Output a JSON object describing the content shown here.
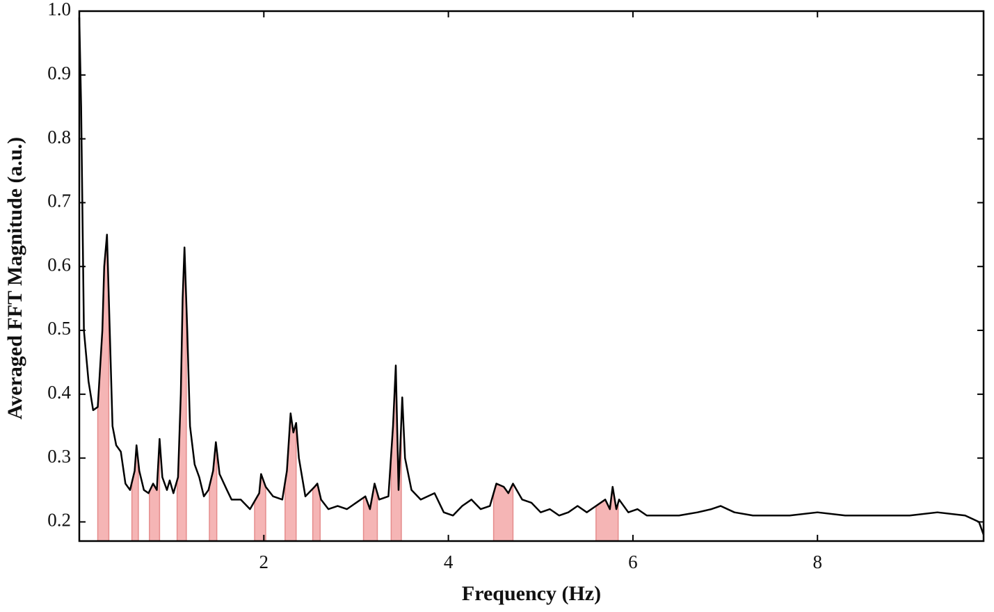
{
  "chart_data": {
    "type": "line",
    "x_label": "Frequency (Hz)",
    "y_label": "Averaged FFT Magnitude (a.u.)",
    "xlim": [
      0,
      9.8
    ],
    "ylim": [
      0.17,
      1.0
    ],
    "xticks": [
      2,
      4,
      6,
      8
    ],
    "yticks": [
      0.2,
      0.3,
      0.4,
      0.5,
      0.6,
      0.7,
      0.8,
      0.9,
      {
        "value": 1,
        "label": "1.0"
      }
    ],
    "grid": false,
    "band_color": "#f5b5b5",
    "bands": [
      [
        0.2,
        0.32
      ],
      [
        0.57,
        0.64
      ],
      [
        0.76,
        0.87
      ],
      [
        1.06,
        1.16
      ],
      [
        1.41,
        1.49
      ],
      [
        1.9,
        2.02
      ],
      [
        2.23,
        2.35
      ],
      [
        2.53,
        2.61
      ],
      [
        3.08,
        3.23
      ],
      [
        3.38,
        3.49
      ],
      [
        4.49,
        4.7
      ],
      [
        5.6,
        5.84
      ]
    ],
    "x": [
      0.0,
      0.02,
      0.05,
      0.1,
      0.15,
      0.2,
      0.25,
      0.27,
      0.3,
      0.33,
      0.36,
      0.4,
      0.45,
      0.5,
      0.55,
      0.6,
      0.62,
      0.65,
      0.7,
      0.75,
      0.8,
      0.84,
      0.87,
      0.9,
      0.95,
      0.98,
      1.02,
      1.07,
      1.1,
      1.12,
      1.14,
      1.17,
      1.2,
      1.25,
      1.3,
      1.35,
      1.4,
      1.45,
      1.48,
      1.52,
      1.6,
      1.65,
      1.75,
      1.85,
      1.95,
      1.97,
      2.02,
      2.1,
      2.2,
      2.25,
      2.29,
      2.32,
      2.35,
      2.38,
      2.45,
      2.55,
      2.58,
      2.62,
      2.7,
      2.8,
      2.9,
      3.0,
      3.1,
      3.15,
      3.2,
      3.25,
      3.35,
      3.4,
      3.43,
      3.46,
      3.5,
      3.53,
      3.6,
      3.7,
      3.85,
      3.9,
      3.95,
      4.05,
      4.15,
      4.25,
      4.35,
      4.45,
      4.52,
      4.6,
      4.65,
      4.7,
      4.8,
      4.9,
      5.0,
      5.1,
      5.2,
      5.3,
      5.4,
      5.5,
      5.6,
      5.7,
      5.75,
      5.78,
      5.82,
      5.85,
      5.95,
      6.05,
      6.15,
      6.3,
      6.5,
      6.7,
      6.85,
      6.95,
      7.1,
      7.3,
      7.5,
      7.7,
      8.0,
      8.3,
      8.6,
      9.0,
      9.3,
      9.6,
      9.75,
      9.8
    ],
    "series": [
      {
        "color": "#000000",
        "values": [
          0.99,
          0.85,
          0.5,
          0.42,
          0.375,
          0.38,
          0.5,
          0.6,
          0.65,
          0.5,
          0.35,
          0.32,
          0.31,
          0.26,
          0.25,
          0.28,
          0.32,
          0.28,
          0.25,
          0.245,
          0.26,
          0.25,
          0.33,
          0.27,
          0.25,
          0.265,
          0.245,
          0.27,
          0.4,
          0.55,
          0.63,
          0.5,
          0.35,
          0.29,
          0.27,
          0.24,
          0.25,
          0.28,
          0.325,
          0.275,
          0.25,
          0.235,
          0.235,
          0.22,
          0.245,
          0.275,
          0.255,
          0.24,
          0.235,
          0.28,
          0.37,
          0.34,
          0.355,
          0.3,
          0.24,
          0.255,
          0.26,
          0.235,
          0.22,
          0.225,
          0.22,
          0.23,
          0.24,
          0.22,
          0.26,
          0.235,
          0.24,
          0.35,
          0.445,
          0.25,
          0.395,
          0.3,
          0.25,
          0.235,
          0.245,
          0.23,
          0.215,
          0.21,
          0.225,
          0.235,
          0.22,
          0.225,
          0.26,
          0.255,
          0.245,
          0.26,
          0.235,
          0.23,
          0.215,
          0.22,
          0.21,
          0.215,
          0.225,
          0.215,
          0.225,
          0.235,
          0.22,
          0.255,
          0.22,
          0.235,
          0.215,
          0.22,
          0.21,
          0.21,
          0.21,
          0.215,
          0.22,
          0.225,
          0.215,
          0.21,
          0.21,
          0.21,
          0.215,
          0.21,
          0.21,
          0.21,
          0.215,
          0.21,
          0.2,
          0.18
        ]
      }
    ]
  }
}
